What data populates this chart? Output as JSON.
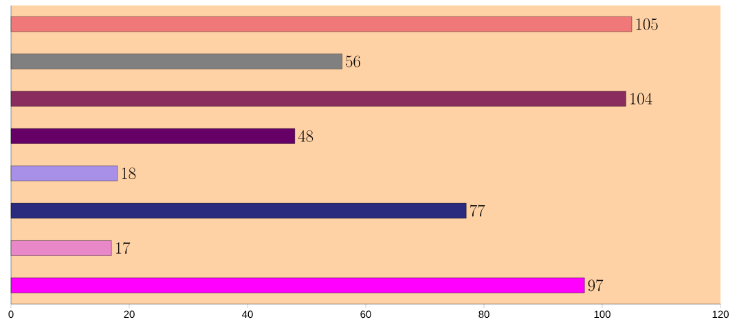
{
  "chart_data": {
    "type": "bar",
    "orientation": "horizontal",
    "categories": [
      null,
      null,
      null,
      null,
      null,
      null,
      null,
      null
    ],
    "values": [
      105,
      56,
      104,
      48,
      18,
      77,
      17,
      97
    ],
    "colors": [
      "#f07878",
      "#808080",
      "#8a2d5e",
      "#660066",
      "#a890e8",
      "#2a2a7e",
      "#e888c8",
      "#ff00ff"
    ],
    "xlim": [
      0,
      120
    ],
    "xticks": [
      0,
      20,
      40,
      60,
      80,
      100,
      120
    ],
    "data_labels": true,
    "grid": false
  }
}
